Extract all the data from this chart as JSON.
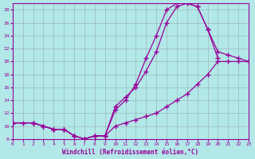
{
  "xlabel": "Windchill (Refroidissement éolien,°C)",
  "xlim": [
    0,
    23
  ],
  "ylim": [
    8,
    29
  ],
  "xticks": [
    0,
    1,
    2,
    3,
    4,
    5,
    6,
    7,
    8,
    9,
    10,
    11,
    12,
    13,
    14,
    15,
    16,
    17,
    18,
    19,
    20,
    21,
    22,
    23
  ],
  "yticks": [
    8,
    10,
    12,
    14,
    16,
    18,
    20,
    22,
    24,
    26,
    28
  ],
  "bg_color": "#b2e8e8",
  "line_color": "#990099",
  "line1_x": [
    0,
    1,
    2,
    3,
    4,
    5,
    6,
    7,
    8,
    9,
    10,
    11,
    12,
    13,
    14,
    15,
    16,
    17,
    18,
    19,
    20,
    21,
    22,
    23
  ],
  "line1_y": [
    10.5,
    10.5,
    10.5,
    10.0,
    9.5,
    9.5,
    8.5,
    8.0,
    8.5,
    8.5,
    10.0,
    10.5,
    11.0,
    11.5,
    12.0,
    13.0,
    14.0,
    15.0,
    16.5,
    18.0,
    20.0,
    20.0,
    20.0,
    20.0
  ],
  "line2_x": [
    0,
    2,
    3,
    4,
    5,
    6,
    7,
    8,
    9,
    10,
    11,
    12,
    13,
    14,
    15,
    16,
    17,
    18,
    19,
    20
  ],
  "line2_y": [
    10.5,
    10.5,
    10.0,
    9.5,
    9.5,
    8.5,
    8.0,
    8.5,
    8.5,
    13.0,
    14.5,
    16.0,
    18.5,
    21.5,
    26.0,
    28.5,
    29.0,
    28.5,
    25.0,
    20.5
  ],
  "line3_x": [
    0,
    2,
    3,
    4,
    5,
    6,
    7,
    8,
    9,
    10,
    11,
    12,
    13,
    14,
    15,
    16,
    17,
    18,
    19,
    20,
    21,
    22,
    23
  ],
  "line3_y": [
    10.5,
    10.5,
    10.0,
    9.5,
    9.5,
    8.5,
    8.0,
    8.5,
    8.5,
    12.5,
    14.0,
    16.5,
    20.5,
    24.0,
    28.0,
    29.0,
    29.0,
    28.5,
    25.0,
    21.5,
    21.0,
    20.5,
    20.0
  ]
}
